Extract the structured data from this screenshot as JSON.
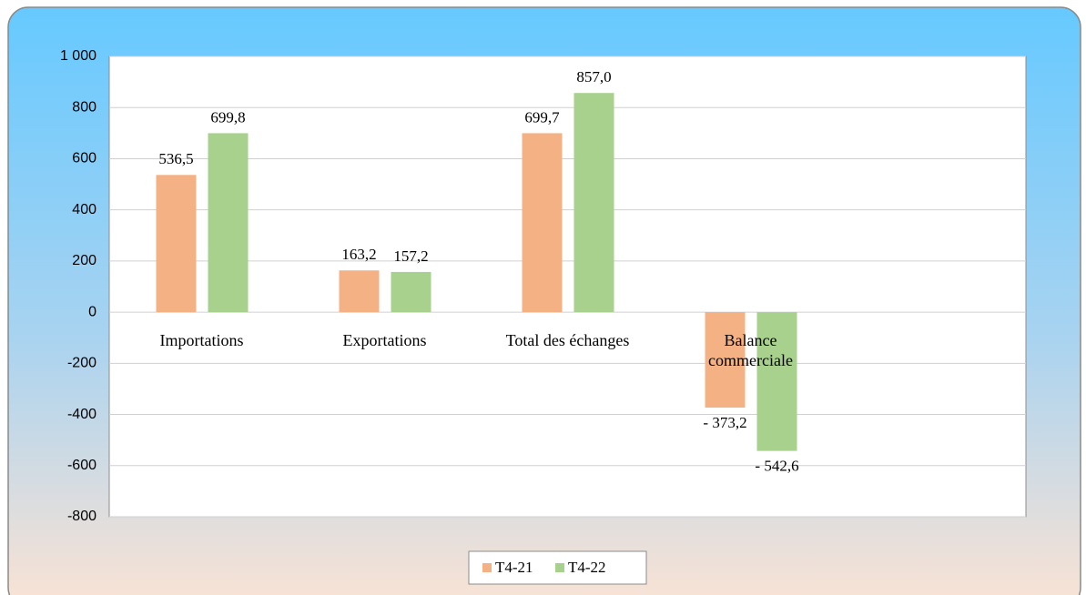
{
  "chart_data": {
    "type": "bar",
    "categories": [
      "Importations",
      "Exportations",
      "Total des échanges",
      "Balance\ncommerciale"
    ],
    "series": [
      {
        "name": "T4-21",
        "color": "#f4b183",
        "values": [
          536.5,
          163.2,
          699.7,
          -373.2
        ],
        "value_labels": [
          "536,5",
          "163,2",
          "699,7",
          "- 373,2"
        ]
      },
      {
        "name": "T4-22",
        "color": "#a9d18e",
        "values": [
          699.8,
          157.2,
          857.0,
          -542.6
        ],
        "value_labels": [
          "699,8",
          "157,2",
          "857,0",
          "- 542,6"
        ]
      }
    ],
    "ylim": [
      -800,
      1000
    ],
    "yticks": [
      -800,
      -600,
      -400,
      -200,
      0,
      200,
      400,
      600,
      800,
      {
        "value": 1000,
        "label": "1 000"
      }
    ],
    "grid": true,
    "legend": "bottom"
  }
}
